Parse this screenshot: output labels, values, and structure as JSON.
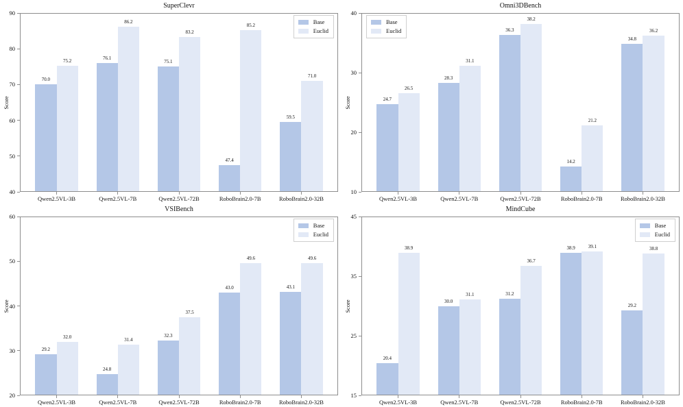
{
  "figure": {
    "background": "#ffffff",
    "ylabel": "Score"
  },
  "colors": {
    "base": "#b4c7e7",
    "euclid": "#e2e9f6",
    "spine": "#8c8c8c",
    "text": "#111111",
    "legend_border": "#cfcfcf"
  },
  "legend": {
    "items": [
      {
        "label": "Base",
        "color_key": "base"
      },
      {
        "label": "Euclid",
        "color_key": "euclid"
      }
    ]
  },
  "chart_data": [
    {
      "type": "bar",
      "title": "SuperClevr",
      "xlabel": "",
      "ylabel": "Score",
      "ylim": [
        40,
        90
      ],
      "yticks": [
        40,
        50,
        60,
        70,
        80,
        90
      ],
      "grid": false,
      "legend_position": "upper-right",
      "categories": [
        "Qwen2.5VL-3B",
        "Qwen2.5VL-7B",
        "Qwen2.5VL-72B",
        "RoboBrain2.0-7B",
        "RoboBrain2.0-32B"
      ],
      "series": [
        {
          "name": "Base",
          "values": [
            70.0,
            76.1,
            75.1,
            47.4,
            59.5
          ]
        },
        {
          "name": "Euclid",
          "values": [
            75.2,
            86.2,
            83.2,
            85.2,
            71.0
          ]
        }
      ]
    },
    {
      "type": "bar",
      "title": "Omni3DBench",
      "xlabel": "",
      "ylabel": "Score",
      "ylim": [
        10,
        40
      ],
      "yticks": [
        10,
        20,
        30,
        40
      ],
      "grid": false,
      "legend_position": "upper-left",
      "categories": [
        "Qwen2.5VL-3B",
        "Qwen2.5VL-7B",
        "Qwen2.5VL-72B",
        "RoboBrain2.0-7B",
        "RoboBrain2.0-32B"
      ],
      "series": [
        {
          "name": "Base",
          "values": [
            24.7,
            28.3,
            36.3,
            14.2,
            34.8
          ]
        },
        {
          "name": "Euclid",
          "values": [
            26.5,
            31.1,
            38.2,
            21.2,
            36.2
          ]
        }
      ]
    },
    {
      "type": "bar",
      "title": "VSIBench",
      "xlabel": "",
      "ylabel": "Score",
      "ylim": [
        20,
        60
      ],
      "yticks": [
        20,
        30,
        40,
        50,
        60
      ],
      "grid": false,
      "legend_position": "upper-right",
      "categories": [
        "Qwen2.5VL-3B",
        "Qwen2.5VL-7B",
        "Qwen2.5VL-72B",
        "RoboBrain2.0-7B",
        "RoboBrain2.0-32B"
      ],
      "series": [
        {
          "name": "Base",
          "values": [
            29.2,
            24.8,
            32.3,
            43.0,
            43.1
          ]
        },
        {
          "name": "Euclid",
          "values": [
            32.0,
            31.4,
            37.5,
            49.6,
            49.6
          ]
        }
      ]
    },
    {
      "type": "bar",
      "title": "MindCube",
      "xlabel": "",
      "ylabel": "Score",
      "ylim": [
        15,
        45
      ],
      "yticks": [
        15,
        25,
        35,
        45
      ],
      "grid": false,
      "legend_position": "upper-right",
      "categories": [
        "Qwen2.5VL-3B",
        "Qwen2.5VL-7B",
        "Qwen2.5VL-72B",
        "RoboBrain2.0-7B",
        "RoboBrain2.0-32B"
      ],
      "series": [
        {
          "name": "Base",
          "values": [
            20.4,
            30.0,
            31.2,
            38.9,
            29.2
          ]
        },
        {
          "name": "Euclid",
          "values": [
            38.9,
            31.1,
            36.7,
            39.1,
            38.8
          ]
        }
      ]
    }
  ]
}
